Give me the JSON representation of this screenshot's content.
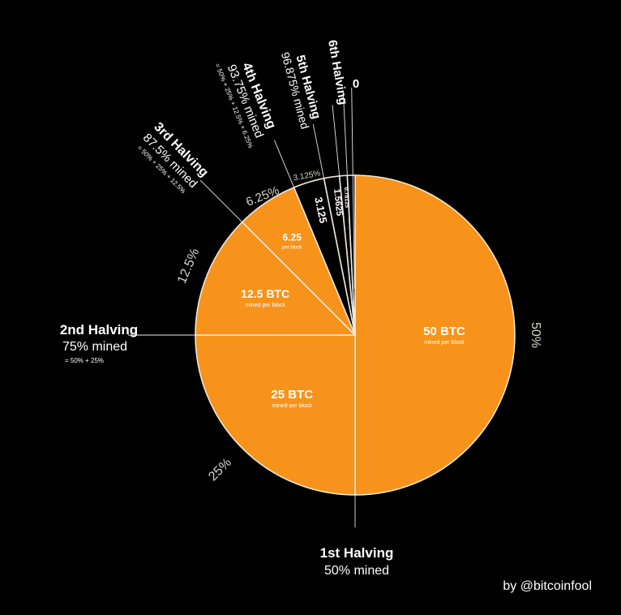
{
  "chart_data": {
    "type": "pie",
    "slices": [
      {
        "label": "50 BTC",
        "sub": "mined per block",
        "value": 50,
        "pct_label": "50%",
        "color": "#F7931A"
      },
      {
        "label": "25 BTC",
        "sub": "mined per block",
        "value": 25,
        "pct_label": "25%",
        "color": "#F7931A"
      },
      {
        "label": "12.5 BTC",
        "sub": "mined per block",
        "value": 12.5,
        "pct_label": "12.5%",
        "color": "#F7931A"
      },
      {
        "label": "6.25",
        "sub": "per block",
        "value": 6.25,
        "pct_label": "6.25%",
        "color": "#F7931A"
      },
      {
        "label": "3.125",
        "sub": "",
        "value": 3.125,
        "pct_label": "3.125%",
        "color": "#000000"
      },
      {
        "label": "1.5625",
        "sub": "",
        "value": 1.5625,
        "pct_label": "",
        "color": "#000000"
      },
      {
        "label": "0.78125",
        "sub": "",
        "value": 0.78125,
        "pct_label": "",
        "color": "#000000"
      },
      {
        "label": "",
        "sub": "",
        "value": 0.78125,
        "pct_label": "",
        "color": "#000000"
      }
    ],
    "halvings": [
      {
        "name": "1st Halving",
        "mined": "50% mined",
        "formula": ""
      },
      {
        "name": "2nd Halving",
        "mined": "75% mined",
        "formula": "= 50% + 25%"
      },
      {
        "name": "3rd Halving",
        "mined": "87.5% mined",
        "formula": "= 50% + 25% + 12.5%"
      },
      {
        "name": "4th Halving",
        "mined": "93.75% mined",
        "formula": "= 50% + 25% + 12.5% + 6.25%"
      },
      {
        "name": "5th Halving",
        "mined": "96.875% mined",
        "formula": ""
      },
      {
        "name": "6th Halving",
        "mined": "",
        "formula": ""
      },
      {
        "name": "0",
        "mined": "",
        "formula": ""
      }
    ],
    "credit": "by @bitcoinfool"
  },
  "colors": {
    "accent": "#F7931A",
    "background": "#000000",
    "line": "#EDE7DC",
    "text": "#FFFFFF"
  }
}
